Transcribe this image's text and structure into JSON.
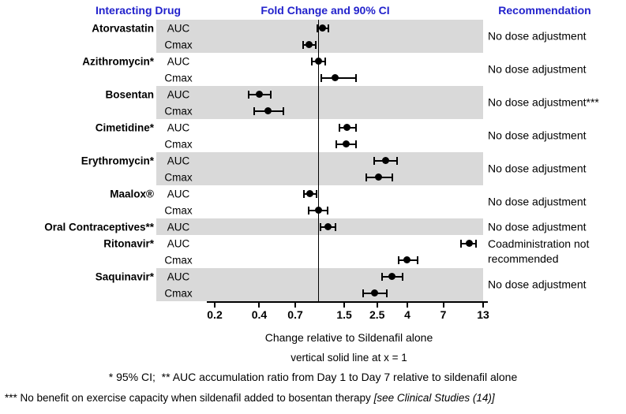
{
  "header": {
    "interacting_drug": "Interacting Drug",
    "fold_change": "Fold Change and 90% CI",
    "recommendation": "Recommendation"
  },
  "chart_data": {
    "type": "forest",
    "x_scale": "log",
    "x_range": [
      0.2,
      13
    ],
    "x_ticks": [
      0.2,
      0.4,
      0.7,
      1.5,
      2.5,
      4,
      7,
      13
    ],
    "x_tick_labels": [
      "0.2",
      "0.4",
      "0.7",
      "1.5",
      "2.5",
      "4",
      "7",
      "13"
    ],
    "reference_line": 1,
    "ci_level": "90% CI",
    "xlabel": "Change relative to Sildenafil alone",
    "groups": [
      {
        "drug": "Atorvastatin",
        "shaded": true,
        "recommendation": "No dose adjustment",
        "rows": [
          {
            "param": "AUC",
            "est": 1.07,
            "lo": 0.99,
            "hi": 1.17
          },
          {
            "param": "Cmax",
            "est": 0.87,
            "lo": 0.79,
            "hi": 0.96
          }
        ]
      },
      {
        "drug": "Azithromycin*",
        "shaded": false,
        "recommendation": "No dose adjustment",
        "rows": [
          {
            "param": "AUC",
            "est": 1.0,
            "lo": 0.91,
            "hi": 1.12
          },
          {
            "param": "Cmax",
            "est": 1.3,
            "lo": 1.05,
            "hi": 1.8
          }
        ]
      },
      {
        "drug": "Bosentan",
        "shaded": true,
        "recommendation": "No dose adjustment***",
        "rows": [
          {
            "param": "AUC",
            "est": 0.4,
            "lo": 0.34,
            "hi": 0.48
          },
          {
            "param": "Cmax",
            "est": 0.46,
            "lo": 0.37,
            "hi": 0.58
          }
        ]
      },
      {
        "drug": "Cimetidine*",
        "shaded": false,
        "recommendation": "No dose adjustment",
        "rows": [
          {
            "param": "AUC",
            "est": 1.57,
            "lo": 1.4,
            "hi": 1.8
          },
          {
            "param": "Cmax",
            "est": 1.54,
            "lo": 1.33,
            "hi": 1.79
          }
        ]
      },
      {
        "drug": "Erythromycin*",
        "shaded": true,
        "recommendation": "No dose adjustment",
        "rows": [
          {
            "param": "AUC",
            "est": 2.84,
            "lo": 2.4,
            "hi": 3.4
          },
          {
            "param": "Cmax",
            "est": 2.57,
            "lo": 2.1,
            "hi": 3.15
          }
        ]
      },
      {
        "drug": "Maalox®",
        "shaded": false,
        "recommendation": "No dose adjustment",
        "rows": [
          {
            "param": "AUC",
            "est": 0.88,
            "lo": 0.8,
            "hi": 0.97
          },
          {
            "param": "Cmax",
            "est": 1.0,
            "lo": 0.86,
            "hi": 1.16
          }
        ]
      },
      {
        "drug": "Oral Contraceptives**",
        "shaded": true,
        "recommendation": "No dose adjustment",
        "rows": [
          {
            "param": "AUC",
            "est": 1.17,
            "lo": 1.04,
            "hi": 1.31
          }
        ]
      },
      {
        "drug": "Ritonavir*",
        "shaded": false,
        "recommendation": "Coadministration not\nrecommended",
        "rows": [
          {
            "param": "AUC",
            "est": 10.5,
            "lo": 9.2,
            "hi": 11.6
          },
          {
            "param": "Cmax",
            "est": 4.0,
            "lo": 3.5,
            "hi": 4.7
          }
        ]
      },
      {
        "drug": "Saquinavir*",
        "shaded": true,
        "recommendation": "No dose adjustment",
        "rows": [
          {
            "param": "AUC",
            "est": 3.15,
            "lo": 2.7,
            "hi": 3.7
          },
          {
            "param": "Cmax",
            "est": 2.4,
            "lo": 2.0,
            "hi": 2.9
          }
        ]
      }
    ]
  },
  "captions": {
    "xlabel": "Change relative to Sildenafil alone",
    "ref_note": "vertical solid line at x = 1",
    "footnote1": "* 95% CI;  ** AUC accumulation ratio from Day 1 to Day 7 relative to sildenafil alone",
    "footnote2_main": "*** No benefit on exercise capacity when sildenafil added to bosentan therapy ",
    "footnote2_italic": "[see Clinical Studies (14)]"
  },
  "colors": {
    "header_text_blue": "#2222cc",
    "shading_gray": "#d9d9d9",
    "marker_black": "#000000"
  }
}
